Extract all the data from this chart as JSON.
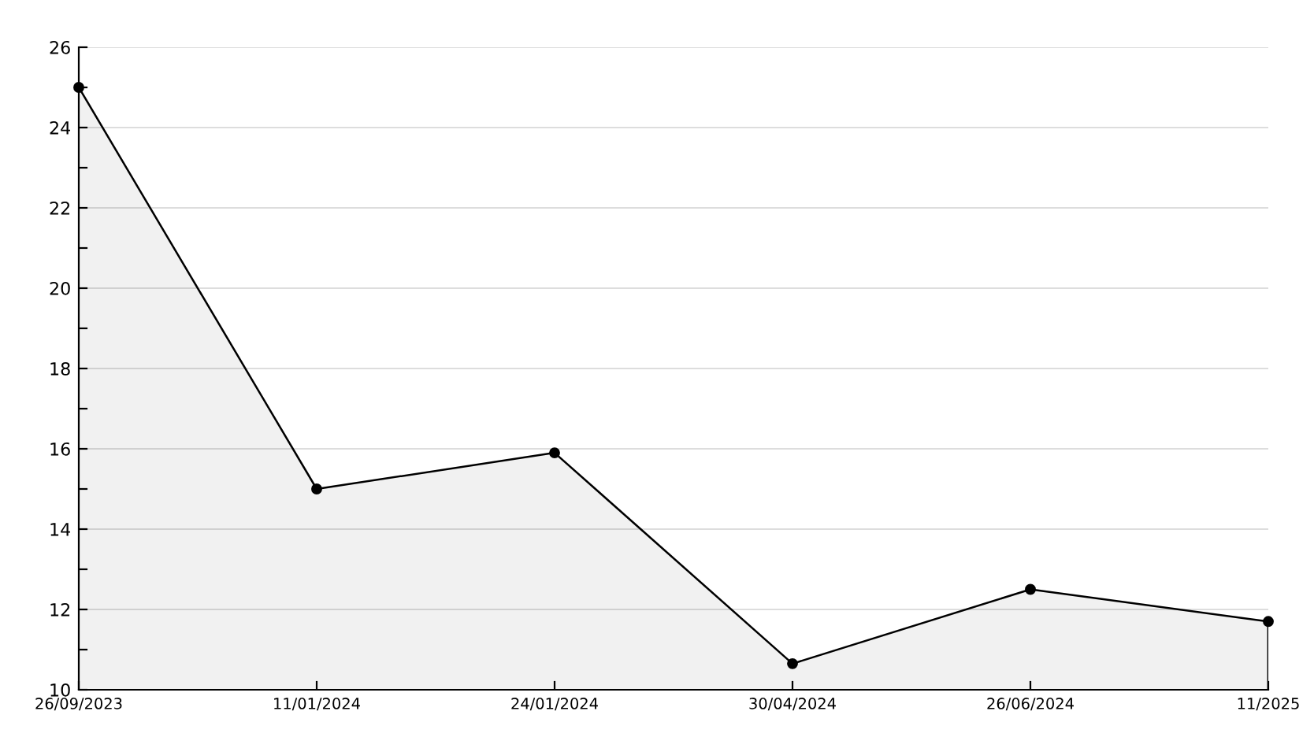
{
  "chart_data": {
    "type": "area",
    "categories": [
      "26/09/2023",
      "11/01/2024",
      "24/01/2024",
      "30/04/2024",
      "26/06/2024",
      "11/2025"
    ],
    "series": [
      {
        "color": "#000000",
        "values": [
          25,
          15,
          15.9,
          10.65,
          12.5,
          11.7
        ]
      }
    ],
    "ylim": [
      10,
      26
    ],
    "yticks": [
      10,
      {
        "value": 11,
        "label": null
      },
      12,
      {
        "value": 13,
        "label": null
      },
      14,
      {
        "value": 15,
        "label": null
      },
      16,
      {
        "value": 17,
        "label": null
      },
      18,
      {
        "value": 19,
        "label": null
      },
      20,
      {
        "value": 21,
        "label": null
      },
      22,
      {
        "value": 23,
        "label": null
      },
      24,
      {
        "value": 25,
        "label": null
      },
      26
    ],
    "grid": "y",
    "marker": "circle",
    "line_style": "solid"
  }
}
